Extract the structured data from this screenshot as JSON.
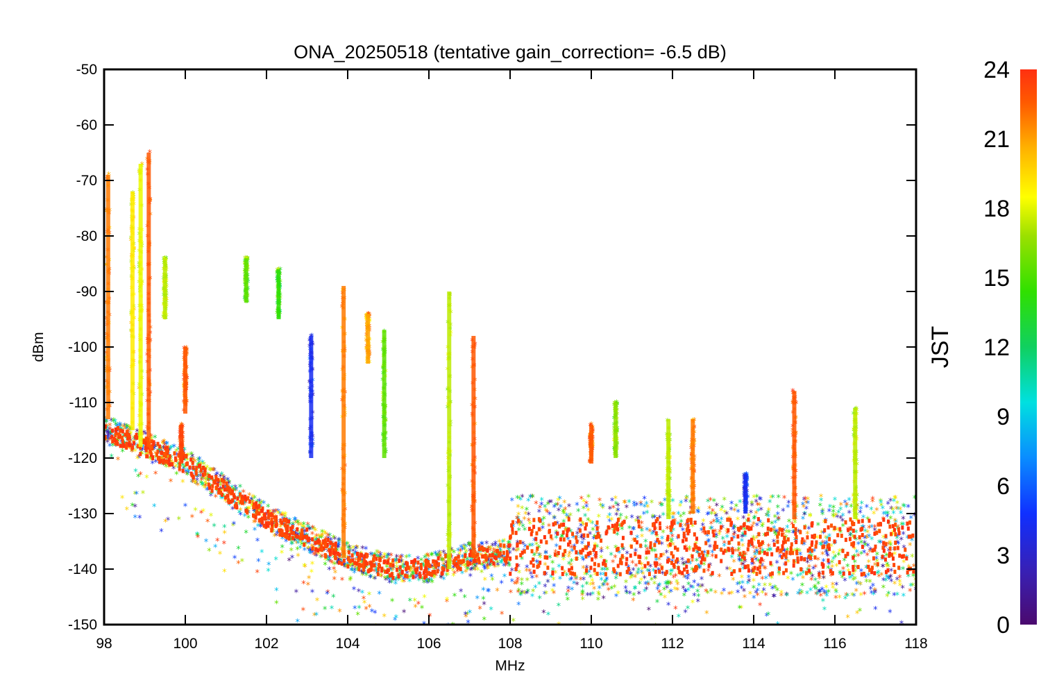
{
  "chart_data": {
    "type": "scatter",
    "title": "ONA_20250518 (tentative gain_correction= -6.5 dB)",
    "xlabel": "MHz",
    "ylabel": "dBm",
    "xlim": [
      98,
      118
    ],
    "ylim": [
      -150,
      -50
    ],
    "x_ticks": [
      "98",
      "100",
      "102",
      "104",
      "106",
      "108",
      "110",
      "112",
      "114",
      "116",
      "118"
    ],
    "y_ticks": [
      "-50",
      "-60",
      "-70",
      "-80",
      "-90",
      "-100",
      "-110",
      "-120",
      "-130",
      "-140",
      "-150"
    ],
    "marker": "asterisk",
    "color_by": "JST hour",
    "colorbar": {
      "label": "JST",
      "range": [
        0,
        24
      ],
      "ticks": [
        "0",
        "3",
        "6",
        "9",
        "12",
        "15",
        "18",
        "21",
        "24"
      ],
      "colormap": "rainbow",
      "colors": [
        "#4b0a6e",
        "#3a1fb0",
        "#1030ff",
        "#0a8cff",
        "#00e0e0",
        "#10d060",
        "#30e000",
        "#9be000",
        "#ffff00",
        "#ffb000",
        "#ff5a00",
        "#ff3010"
      ]
    },
    "noise_floor": [
      {
        "x": 98.0,
        "y": -115
      },
      {
        "x": 100.0,
        "y": -121
      },
      {
        "x": 102.0,
        "y": -131
      },
      {
        "x": 104.0,
        "y": -138
      },
      {
        "x": 105.0,
        "y": -140
      },
      {
        "x": 106.0,
        "y": -140
      },
      {
        "x": 107.0,
        "y": -138
      },
      {
        "x": 108.0,
        "y": -137
      },
      {
        "x": 108.05,
        "y": -136
      },
      {
        "x": 118.0,
        "y": -136
      }
    ],
    "stations": [
      {
        "x": 98.1,
        "y_top": -69,
        "y_bottom": -113,
        "hour": 21
      },
      {
        "x": 98.7,
        "y_top": -72,
        "y_bottom": -115,
        "hour": 18
      },
      {
        "x": 98.9,
        "y_top": -67,
        "y_bottom": -118,
        "hour": 17
      },
      {
        "x": 99.1,
        "y_top": -65,
        "y_bottom": -118,
        "hour": 22
      },
      {
        "x": 99.5,
        "y_top": -84,
        "y_bottom": -95,
        "hour": 16
      },
      {
        "x": 99.9,
        "y_top": -114,
        "y_bottom": -121,
        "hour": 23
      },
      {
        "x": 100.0,
        "y_top": -100,
        "y_bottom": -112,
        "hour": 22
      },
      {
        "x": 101.5,
        "y_top": -84,
        "y_bottom": -92,
        "hour": 14
      },
      {
        "x": 102.3,
        "y_top": -86,
        "y_bottom": -95,
        "hour": 13
      },
      {
        "x": 103.1,
        "y_top": -98,
        "y_bottom": -120,
        "hour": 4
      },
      {
        "x": 103.9,
        "y_top": -89,
        "y_bottom": -138,
        "hour": 21
      },
      {
        "x": 104.5,
        "y_top": -94,
        "y_bottom": -103,
        "hour": 20
      },
      {
        "x": 104.9,
        "y_top": -97,
        "y_bottom": -120,
        "hour": 14
      },
      {
        "x": 106.5,
        "y_top": -90,
        "y_bottom": -140,
        "hour": 16
      },
      {
        "x": 107.1,
        "y_top": -98,
        "y_bottom": -138,
        "hour": 22
      },
      {
        "x": 110.0,
        "y_top": -114,
        "y_bottom": -121,
        "hour": 22
      },
      {
        "x": 110.6,
        "y_top": -110,
        "y_bottom": -120,
        "hour": 15
      },
      {
        "x": 111.9,
        "y_top": -113,
        "y_bottom": -131,
        "hour": 16
      },
      {
        "x": 112.5,
        "y_top": -113,
        "y_bottom": -130,
        "hour": 21
      },
      {
        "x": 113.8,
        "y_top": -123,
        "y_bottom": -130,
        "hour": 4
      },
      {
        "x": 115.0,
        "y_top": -108,
        "y_bottom": -131,
        "hour": 22
      },
      {
        "x": 116.5,
        "y_top": -111,
        "y_bottom": -131,
        "hour": 16
      }
    ]
  }
}
